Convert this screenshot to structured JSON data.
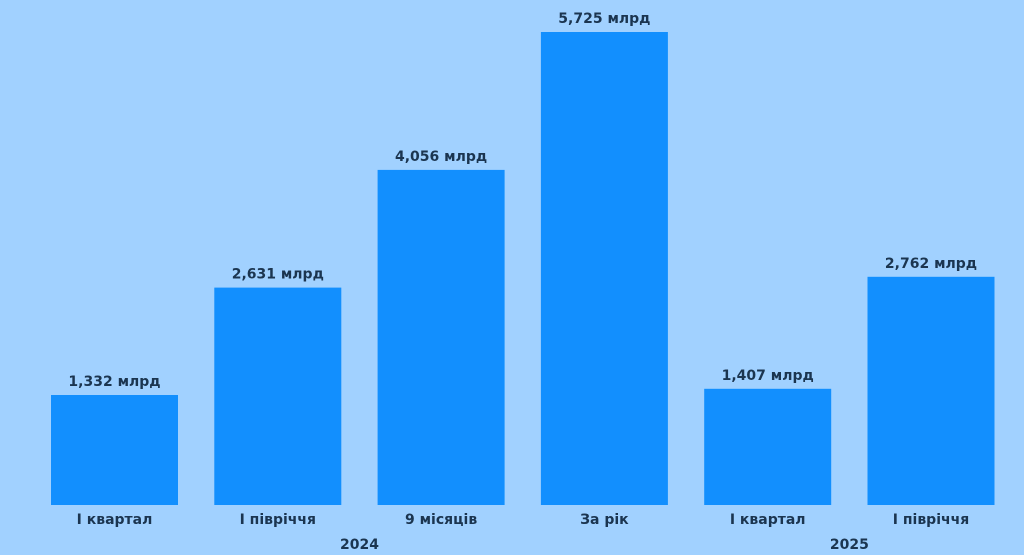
{
  "chart_data": {
    "type": "bar",
    "categories": [
      "I квартал",
      "I півріччя",
      "9 місяців",
      "За рік",
      "I квартал",
      "I півріччя"
    ],
    "values": [
      1.332,
      2.631,
      4.056,
      5.725,
      1.407,
      2.762
    ],
    "value_labels": [
      "1,332 млрд",
      "2,631 млрд",
      "4,056 млрд",
      "5,725 млрд",
      "1,407 млрд",
      "2,762 млрд"
    ],
    "groups": [
      {
        "label": "2024",
        "categories": [
          0,
          1,
          2,
          3
        ]
      },
      {
        "label": "2025",
        "categories": [
          4,
          5
        ]
      }
    ],
    "ylim": [
      0,
      5.725
    ],
    "grid": false,
    "title": "",
    "xlabel": "",
    "ylabel": ""
  },
  "colors": {
    "background": "#a1d1ff",
    "bar": "#128ffe",
    "text": "#1b3550"
  }
}
